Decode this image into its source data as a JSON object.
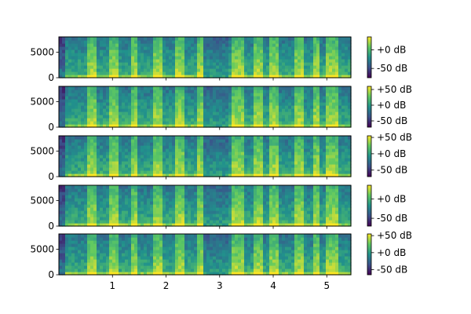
{
  "chart_data": {
    "type": "heatmap",
    "description_kind": "spectrogram",
    "x_axis": {
      "label": "",
      "range": [
        0,
        5.45
      ],
      "ticks": [
        1,
        2,
        3,
        4,
        5
      ],
      "tick_labels": [
        "1",
        "2",
        "3",
        "4",
        "5"
      ],
      "shared": true
    },
    "colormap": "viridis",
    "colors": {
      "low": "#440154",
      "mid": "#21918c",
      "high": "#fde725"
    },
    "panels": [
      {
        "y_range": [
          0,
          8000
        ],
        "y_ticks": [
          0,
          5000
        ],
        "y_tick_labels": [
          "0",
          "5000"
        ],
        "colorbar_ticks": [
          0,
          -50
        ],
        "colorbar_labels": [
          "+0 dB",
          "-50 dB"
        ],
        "colorbar_range": [
          -75,
          35
        ]
      },
      {
        "y_range": [
          0,
          8000
        ],
        "y_ticks": [
          0,
          5000
        ],
        "y_tick_labels": [
          "0",
          "5000"
        ],
        "colorbar_ticks": [
          50,
          0,
          -50
        ],
        "colorbar_labels": [
          "+50 dB",
          "+0 dB",
          "-50 dB"
        ],
        "colorbar_range": [
          -70,
          60
        ]
      },
      {
        "y_range": [
          0,
          8000
        ],
        "y_ticks": [
          0,
          5000
        ],
        "y_tick_labels": [
          "0",
          "5000"
        ],
        "colorbar_ticks": [
          50,
          0,
          -50
        ],
        "colorbar_labels": [
          "+50 dB",
          "+0 dB",
          "-50 dB"
        ],
        "colorbar_range": [
          -70,
          55
        ]
      },
      {
        "y_range": [
          0,
          8000
        ],
        "y_ticks": [
          0,
          5000
        ],
        "y_tick_labels": [
          "0",
          "5000"
        ],
        "colorbar_ticks": [
          0,
          -50
        ],
        "colorbar_labels": [
          "+0 dB",
          "-50 dB"
        ],
        "colorbar_range": [
          -70,
          35
        ]
      },
      {
        "y_range": [
          0,
          8000
        ],
        "y_ticks": [
          0,
          5000
        ],
        "y_tick_labels": [
          "0",
          "5000"
        ],
        "colorbar_ticks": [
          50,
          0,
          -50
        ],
        "colorbar_labels": [
          "+50 dB",
          "+0 dB",
          "-50 dB"
        ],
        "colorbar_range": [
          -65,
          55
        ]
      }
    ]
  }
}
